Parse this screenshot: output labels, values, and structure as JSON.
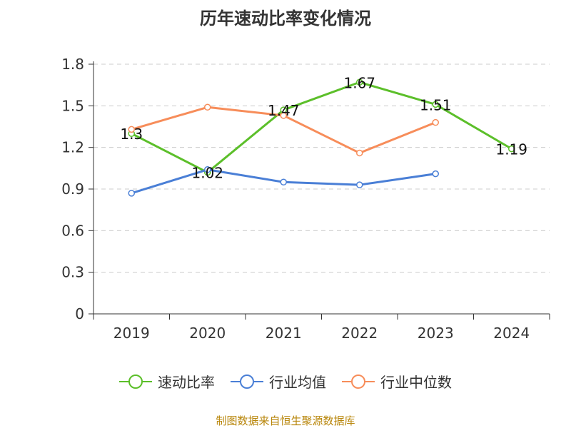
{
  "chart_data": {
    "type": "line",
    "title": "历年速动比率变化情况",
    "categories": [
      "2019",
      "2020",
      "2021",
      "2022",
      "2023",
      "2024"
    ],
    "ylim": [
      0,
      1.8
    ],
    "yticks": [
      "0",
      "0.3",
      "0.6",
      "0.9",
      "1.2",
      "1.5",
      "1.8"
    ],
    "grid": true,
    "legend_position": "bottom",
    "series": [
      {
        "name": "速动比率",
        "color": "#5cbf2a",
        "values": [
          1.3,
          1.02,
          1.47,
          1.67,
          1.51,
          1.19
        ],
        "labels": [
          "1.3",
          "1.02",
          "1.47",
          "1.67",
          "1.51",
          "1.19"
        ]
      },
      {
        "name": "行业均值",
        "color": "#4a7fd6",
        "values": [
          0.87,
          1.04,
          0.95,
          0.93,
          1.01,
          null
        ]
      },
      {
        "name": "行业中位数",
        "color": "#f78d5a",
        "values": [
          1.33,
          1.49,
          1.43,
          1.16,
          1.38,
          null
        ]
      }
    ]
  },
  "source": "制图数据来自恒生聚源数据库"
}
